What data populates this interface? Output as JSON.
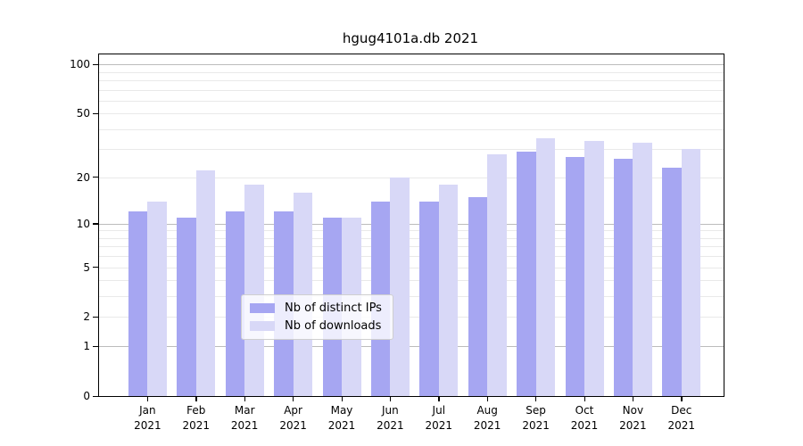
{
  "title": "hgug4101a.db 2021",
  "chart_data": {
    "type": "bar",
    "title": "hgug4101a.db 2021",
    "x_categories": [
      "Jan",
      "Feb",
      "Mar",
      "Apr",
      "May",
      "Jun",
      "Jul",
      "Aug",
      "Sep",
      "Oct",
      "Nov",
      "Dec"
    ],
    "x_year_label": "2021",
    "series": [
      {
        "name": "Nb of distinct IPs",
        "color": "#a6a6f2",
        "values": [
          12,
          11,
          12,
          12,
          11,
          14,
          14,
          15,
          29,
          27,
          26,
          23
        ]
      },
      {
        "name": "Nb of downloads",
        "color": "#d8d8f7",
        "values": [
          14,
          22,
          18,
          16,
          11,
          20,
          18,
          28,
          35,
          34,
          33,
          30
        ]
      }
    ],
    "y_scale": "log1p",
    "ylim": [
      0,
      115
    ],
    "y_ticks": [
      0,
      1,
      2,
      5,
      10,
      20,
      50,
      100
    ],
    "y_gridlines_major": [
      1,
      10,
      100
    ],
    "y_gridlines_minor": [
      2,
      3,
      4,
      5,
      6,
      7,
      8,
      9,
      20,
      30,
      40,
      50,
      60,
      70,
      80,
      90
    ],
    "grid": true,
    "legend_position": "bottom-center"
  },
  "colors": {
    "background": "#ffffff",
    "axis": "#000000",
    "grid_major": "#bcbcbc",
    "grid_minor": "#e9e9e9",
    "text": "#000000",
    "legend_border": "#cfcfcf"
  }
}
